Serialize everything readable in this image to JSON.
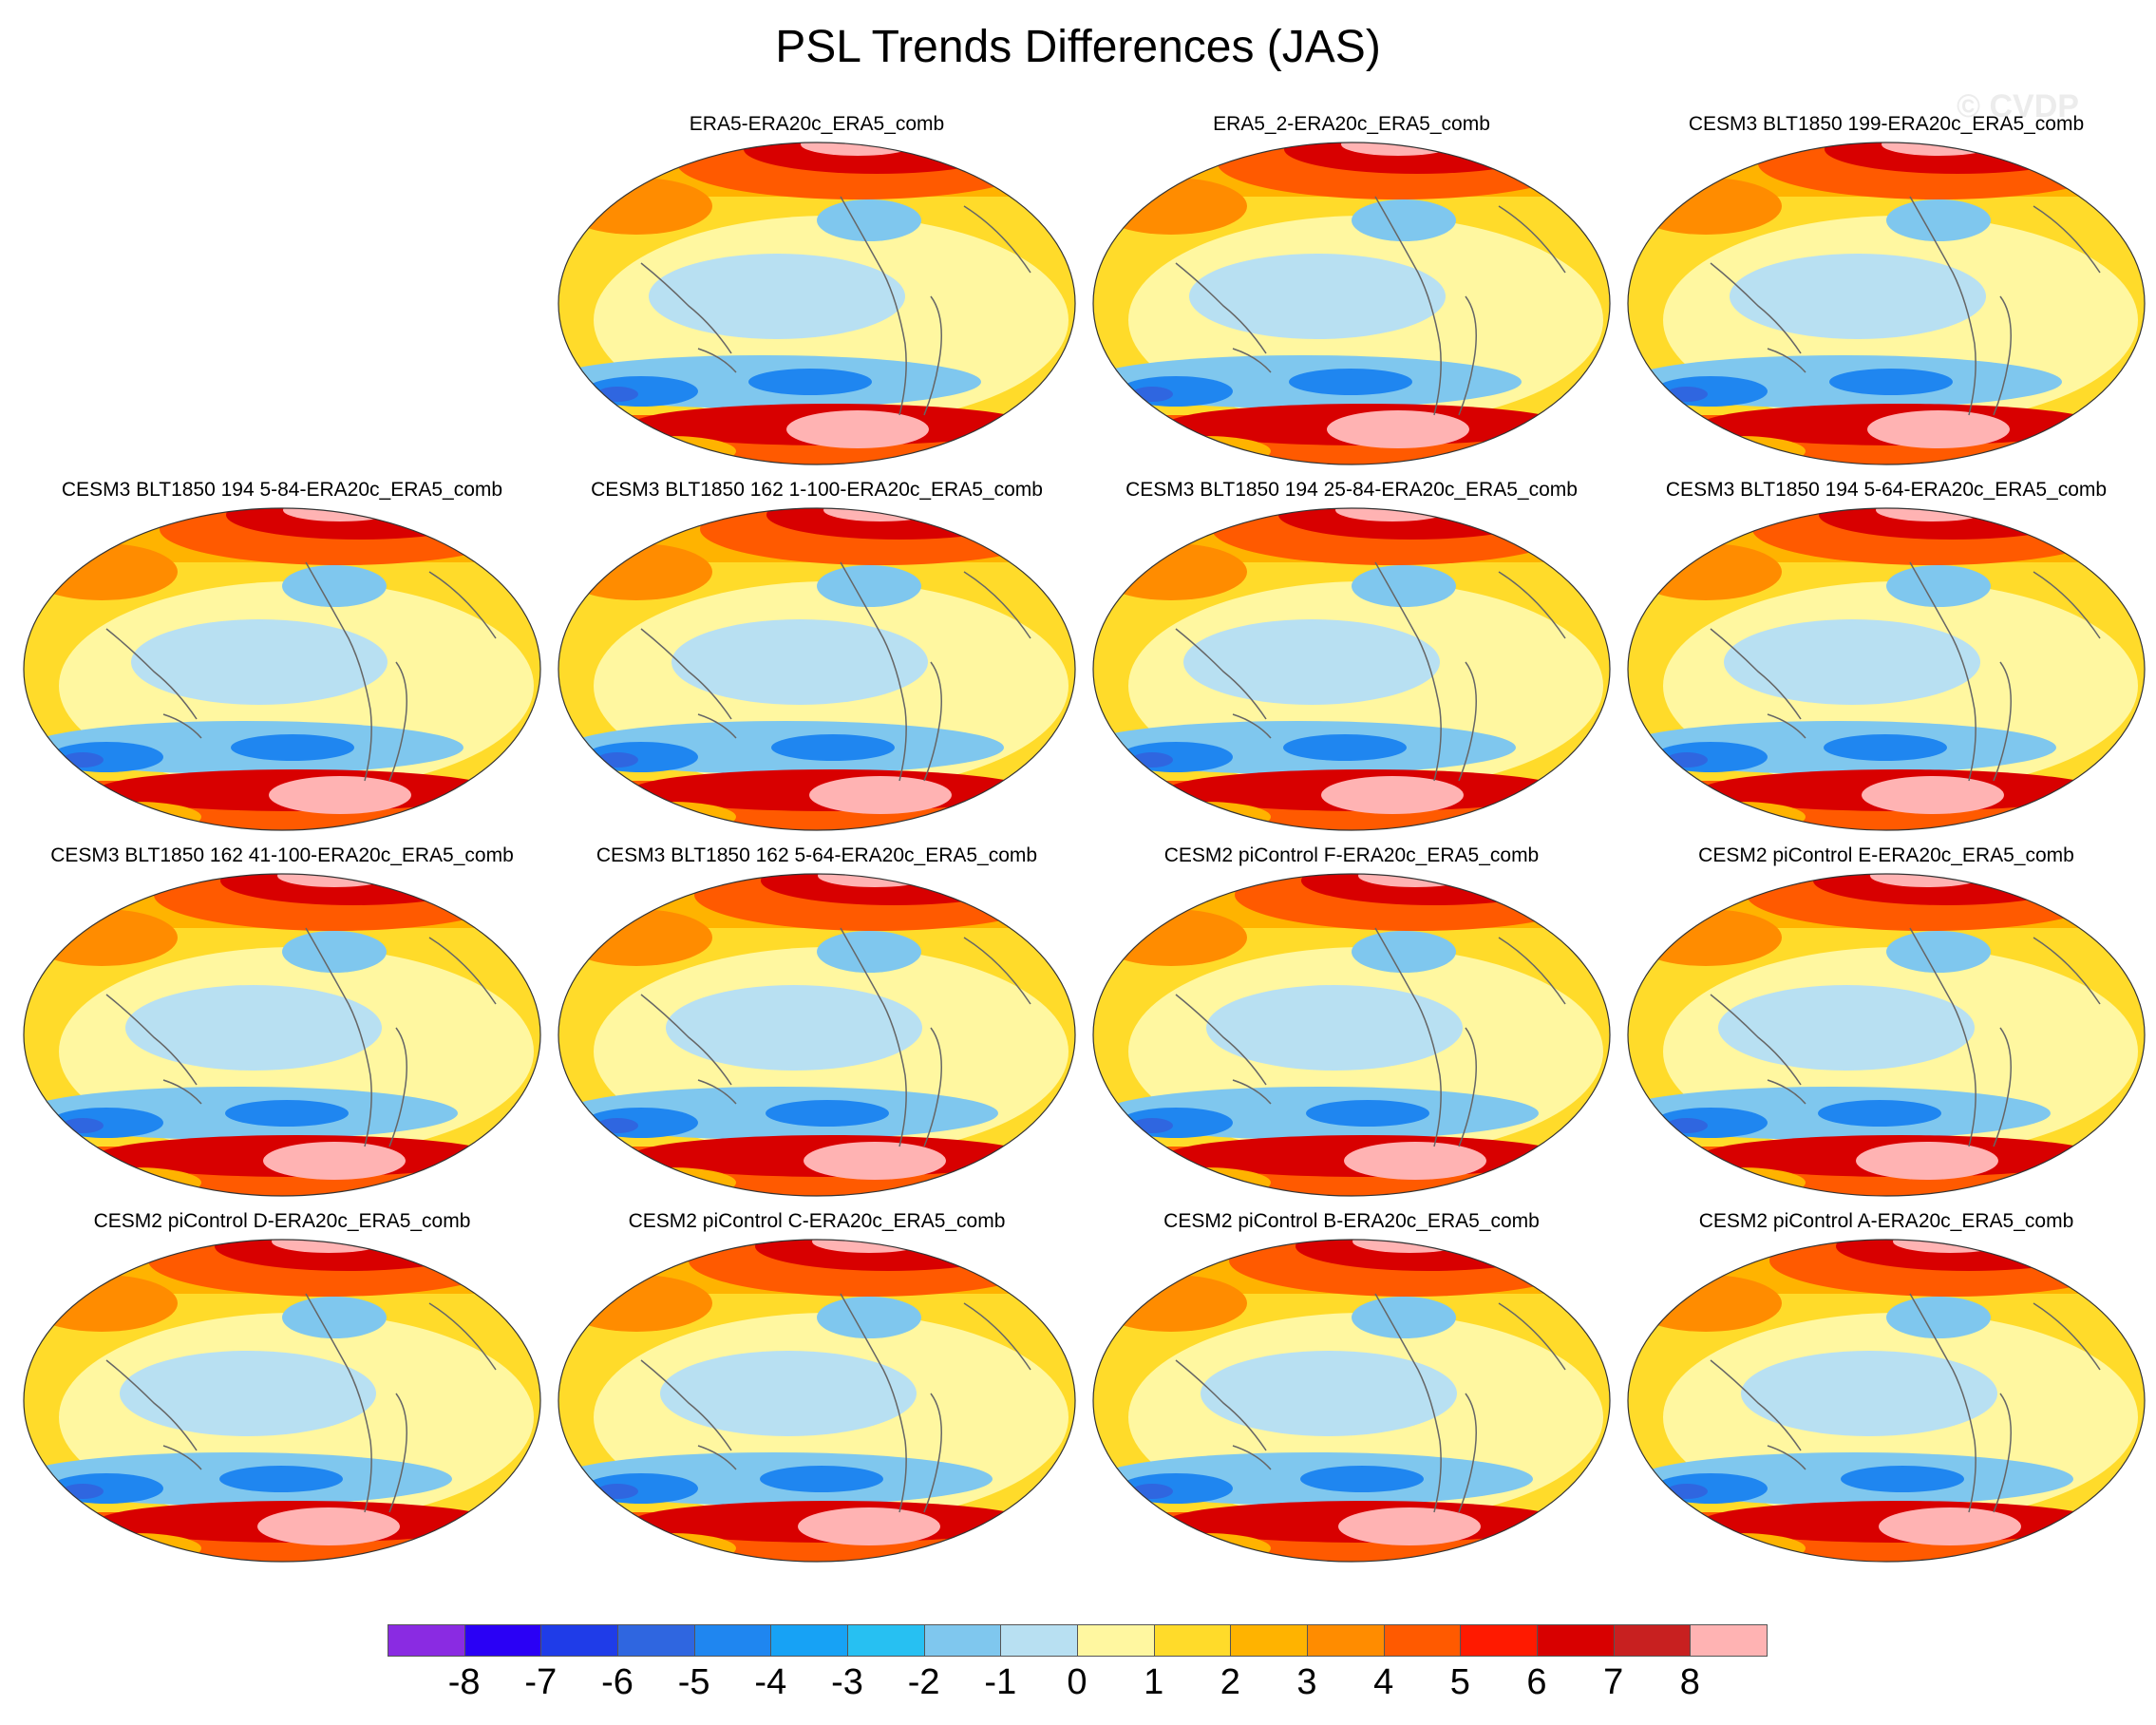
{
  "title": "PSL Trends Differences (JAS)",
  "watermark": "© CVDP",
  "panels": [
    {
      "label": "ERA5-ERA20c_ERA5_comb",
      "row": 0,
      "col": 1
    },
    {
      "label": "ERA5_2-ERA20c_ERA5_comb",
      "row": 0,
      "col": 2
    },
    {
      "label": "CESM3 BLT1850 199-ERA20c_ERA5_comb",
      "row": 0,
      "col": 3
    },
    {
      "label": "CESM3 BLT1850 194 5-84-ERA20c_ERA5_comb",
      "row": 1,
      "col": 0
    },
    {
      "label": "CESM3 BLT1850 162 1-100-ERA20c_ERA5_comb",
      "row": 1,
      "col": 1
    },
    {
      "label": "CESM3 BLT1850 194 25-84-ERA20c_ERA5_comb",
      "row": 1,
      "col": 2
    },
    {
      "label": "CESM3 BLT1850 194 5-64-ERA20c_ERA5_comb",
      "row": 1,
      "col": 3
    },
    {
      "label": "CESM3 BLT1850 162 41-100-ERA20c_ERA5_comb",
      "row": 2,
      "col": 0
    },
    {
      "label": "CESM3 BLT1850 162 5-64-ERA20c_ERA5_comb",
      "row": 2,
      "col": 1
    },
    {
      "label": "CESM2 piControl F-ERA20c_ERA5_comb",
      "row": 2,
      "col": 2
    },
    {
      "label": "CESM2 piControl E-ERA20c_ERA5_comb",
      "row": 2,
      "col": 3
    },
    {
      "label": "CESM2 piControl D-ERA20c_ERA5_comb",
      "row": 3,
      "col": 0
    },
    {
      "label": "CESM2 piControl C-ERA20c_ERA5_comb",
      "row": 3,
      "col": 1
    },
    {
      "label": "CESM2 piControl B-ERA20c_ERA5_comb",
      "row": 3,
      "col": 2
    },
    {
      "label": "CESM2 piControl A-ERA20c_ERA5_comb",
      "row": 3,
      "col": 3
    }
  ],
  "colorbar": {
    "colors": [
      "#8a2be2",
      "#2a00f5",
      "#1f3ce8",
      "#2f66e0",
      "#1f86f0",
      "#17a2f5",
      "#27c0f2",
      "#7fc7ee",
      "#b8e0f2",
      "#fff7a0",
      "#ffdb2a",
      "#ffb300",
      "#ff8c00",
      "#ff5a00",
      "#ff1a00",
      "#d80000",
      "#c82020",
      "#ffb3b3"
    ],
    "labels": [
      "-8",
      "-7",
      "-6",
      "-5",
      "-4",
      "-3",
      "-2",
      "-1",
      "0",
      "1",
      "2",
      "3",
      "4",
      "5",
      "6",
      "7",
      "8"
    ]
  }
}
